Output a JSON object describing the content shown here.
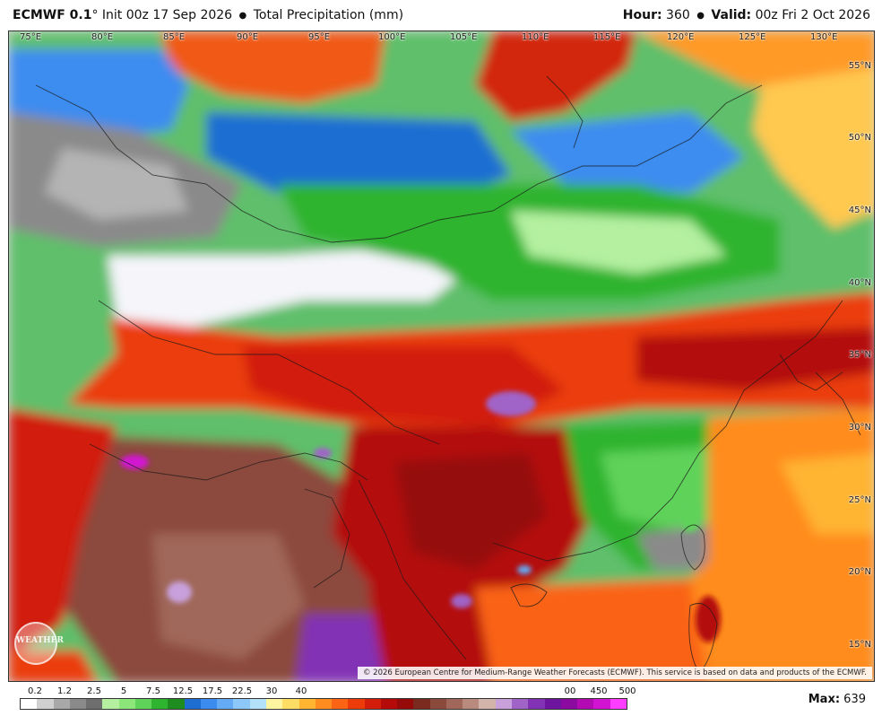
{
  "header": {
    "model": "ECMWF 0.1",
    "degree": "°",
    "init": "Init 00z 17 Sep 2026",
    "bullet": "●",
    "product": "Total Precipitation (mm)",
    "hour_label": "Hour:",
    "hour_value": "360",
    "valid_label": "Valid:",
    "valid_value": "00z Fri 2 Oct 2026"
  },
  "map": {
    "longitudes": [
      "75°E",
      "80°E",
      "85°E",
      "90°E",
      "95°E",
      "100°E",
      "105°E",
      "110°E",
      "115°E",
      "120°E",
      "125°E",
      "130°E"
    ],
    "latitudes": [
      "55°N",
      "50°N",
      "45°N",
      "40°N",
      "35°N",
      "30°N",
      "25°N",
      "20°N",
      "15°N"
    ],
    "copyright": "© 2026 European Centre for Medium-Range Weather Forecasts (ECMWF). This service is based on data and products of the ECMWF.",
    "logo_text": "WEATHER"
  },
  "legend": {
    "ticks": [
      "0.2",
      "1.2",
      "2.5",
      "5",
      "7.5",
      "12.5",
      "17.5",
      "22.5",
      "30",
      "40",
      "00",
      "450",
      "500"
    ],
    "colors": [
      "#ffffff",
      "#d0d0d0",
      "#a8a8a8",
      "#8a8a8a",
      "#6e6e6e",
      "#b4f0a0",
      "#8ce67a",
      "#5fd25a",
      "#2eb42e",
      "#1e8c1e",
      "#1e6ed2",
      "#3c8cf0",
      "#64aaf5",
      "#8cc8fa",
      "#b4e1fa",
      "#fff5a0",
      "#ffdc64",
      "#ffb432",
      "#ff8c1e",
      "#fa6414",
      "#eb3c0a",
      "#d21e0a",
      "#b40a0a",
      "#960a0a",
      "#7a2a1e",
      "#8c4a3c",
      "#a0675a",
      "#b98a7e",
      "#d2b4aa",
      "#c8a0dc",
      "#a064c8",
      "#8232b4",
      "#6e14a0",
      "#8c0aa0",
      "#b40ab4",
      "#d214d2",
      "#ff3cff"
    ],
    "max_label": "Max:",
    "max_value": "639"
  }
}
